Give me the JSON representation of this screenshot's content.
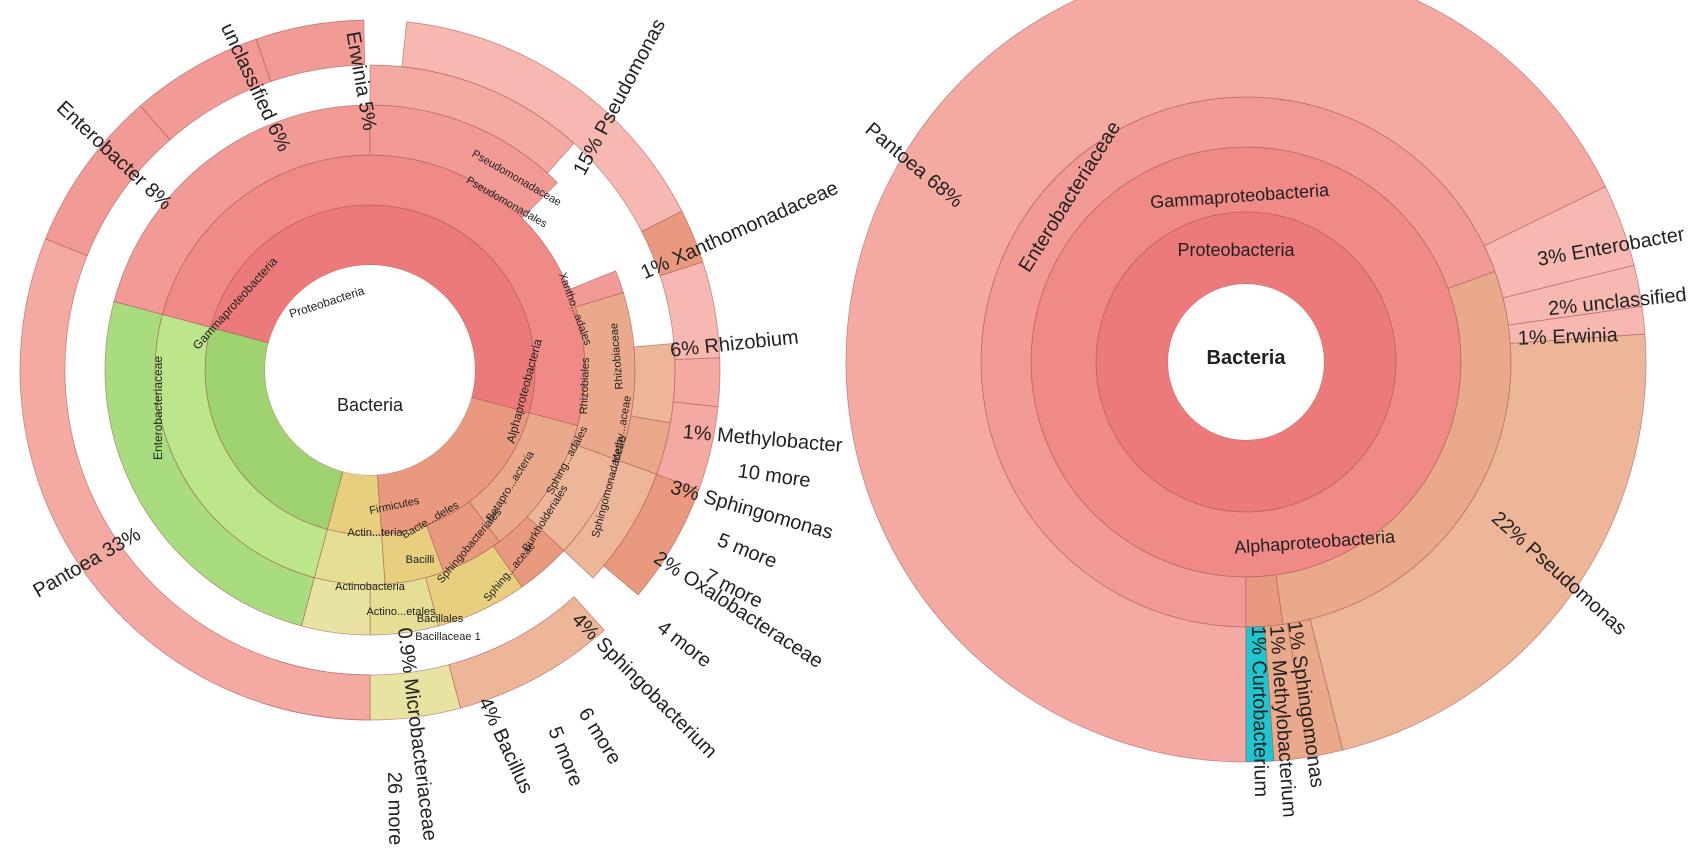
{
  "colors": {
    "p1": "#ec7a7a",
    "p2": "#f08a87",
    "p3": "#f29a96",
    "p4": "#f4a9a3",
    "p5": "#f6b8b0",
    "ao1": "#e99a7e",
    "ao2": "#eaa98a",
    "ao3": "#edb699",
    "firm1": "#e8cf80",
    "firm2": "#e5df95",
    "firm3": "#e8e3a0",
    "actin1": "#9fd36f",
    "actin2": "#bde68a",
    "actin3": "#a9dc7e",
    "cyan": "#1ec6cf",
    "stroke": "#a05555"
  },
  "chart_data": [
    {
      "type": "sunburst",
      "center_label": "Bacteria",
      "segments": [
        {
          "ring": 1,
          "start": 105,
          "end": 176,
          "label": "Alphaproteobacteria",
          "color": "ao1"
        },
        {
          "ring": 1,
          "start": 176,
          "end": 195,
          "label": "Firmicutes",
          "color": "firm1"
        },
        {
          "ring": 1,
          "start": 195,
          "end": 285,
          "label": "Actino...teria",
          "color": "actin1"
        },
        {
          "ring": 1,
          "start": 285,
          "end": 465,
          "label": "Proteobacteria",
          "color": "p1"
        },
        {
          "ring": 2,
          "start": 105,
          "end": 143,
          "label": "Alphaproteobacteria",
          "color": "ao2"
        },
        {
          "ring": 2,
          "start": 143,
          "end": 160,
          "label": "Betapro...acteria",
          "color": "ao1"
        },
        {
          "ring": 2,
          "start": 160,
          "end": 176,
          "label": "Sphingobacteriales",
          "color": "firm1"
        },
        {
          "ring": 2,
          "start": 176,
          "end": 195,
          "label": "Bacilli",
          "color": "firm2"
        },
        {
          "ring": 2,
          "start": 195,
          "end": 285,
          "label": "Actinobacteria",
          "color": "actin2"
        },
        {
          "ring": 2,
          "start": 285,
          "end": 465,
          "label": "Gammaproteobacteria",
          "color": "p2"
        },
        {
          "ring": 3,
          "start": 68,
          "end": 73,
          "label": "Xantho...adales",
          "color": "p3"
        },
        {
          "ring": 3,
          "start": 73,
          "end": 110,
          "label": "Rhizobiales",
          "color": "ao2"
        },
        {
          "ring": 3,
          "start": 110,
          "end": 133,
          "label": "Sphing...adales",
          "color": "ao3"
        },
        {
          "ring": 3,
          "start": 133,
          "end": 145,
          "label": "Burkholderiales",
          "color": "ao1"
        },
        {
          "ring": 3,
          "start": 145,
          "end": 165,
          "label": "Sphing...aceae",
          "color": "firm1"
        },
        {
          "ring": 3,
          "start": 165,
          "end": 180,
          "label": "Bacillales",
          "color": "firm2"
        },
        {
          "ring": 3,
          "start": 180,
          "end": 195,
          "label": "Bacillaceae 1",
          "color": "firm3"
        },
        {
          "ring": 3,
          "start": 195,
          "end": 285,
          "label": "Actino...etales",
          "color": "actin3"
        },
        {
          "ring": 3,
          "start": 285,
          "end": 360,
          "label": "Enterobacteriaceae",
          "color": "p3"
        },
        {
          "ring": 3,
          "start": 360,
          "end": 405,
          "label": "Pseudomonadales",
          "color": "p3"
        },
        {
          "ring": 4,
          "start": 360,
          "end": 402,
          "label": "Pseudomonadaceae",
          "color": "p4"
        },
        {
          "ring": 4,
          "start": 85,
          "end": 100,
          "label": "Methy...aceae",
          "color": "ao3"
        },
        {
          "ring": 4,
          "start": 100,
          "end": 110,
          "label": "Rhizobiaceae",
          "color": "ao2"
        },
        {
          "ring": 4,
          "start": 110,
          "end": 133,
          "label": "Sphingomonadaceae",
          "color": "ao3"
        },
        {
          "ring": 5,
          "start": 180,
          "end": 198,
          "label": "0.9% Microbacteriaceae",
          "color": "actin1"
        },
        {
          "ring": 5,
          "start": 165,
          "end": 180,
          "label": "4% Bacillus",
          "color": "firm3"
        },
        {
          "ring": 5,
          "start": 138,
          "end": 165,
          "label": "4% Sphingobacterium",
          "color": "ao3"
        },
        {
          "ring": 5,
          "start": 110,
          "end": 130,
          "label": "2% Oxalobacteraceae",
          "color": "ao1"
        },
        {
          "ring": 5,
          "start": 96,
          "end": 110,
          "label": "3% Sphingomonas",
          "color": "p4"
        },
        {
          "ring": 5,
          "start": 88,
          "end": 96,
          "label": "1% Methylobacter",
          "color": "p4"
        },
        {
          "ring": 5,
          "start": 72,
          "end": 88,
          "label": "6% Rhizobium",
          "color": "p5"
        },
        {
          "ring": 5,
          "start": 63,
          "end": 72,
          "label": "1% Xanthomonadaceae",
          "color": "ao1"
        },
        {
          "ring": 5,
          "start": 6,
          "end": 63,
          "label": "15% Pseudomonas",
          "color": "p5"
        },
        {
          "ring": 5,
          "start": -19,
          "end": -1,
          "label": "Erwinia 5%",
          "color": "p3"
        },
        {
          "ring": 5,
          "start": -41,
          "end": -19,
          "label": "unclassified 6%",
          "color": "p3"
        },
        {
          "ring": 5,
          "start": -68,
          "end": -41,
          "label": "Enterobacter 8%",
          "color": "p3"
        },
        {
          "ring": 5,
          "start": -180,
          "end": -68,
          "label": "Pantoea 33%",
          "color": "p4"
        }
      ],
      "extra_labels": [
        "10 more",
        "5 more",
        "7 more",
        "4 more",
        "6 more",
        "5 more",
        "26 more"
      ]
    },
    {
      "type": "sunburst",
      "center_label": "Bacteria",
      "segments": [
        {
          "ring": 1,
          "start": 0,
          "end": 360,
          "label": "Proteobacteria",
          "color": "p1"
        },
        {
          "ring": 2,
          "start": 0,
          "end": 360,
          "label": "Gammaproteobacteria",
          "color": "p2"
        },
        {
          "ring": 3,
          "start": -180,
          "end": 70,
          "label": "Enterobacteriaceae",
          "color": "p3"
        },
        {
          "ring": 3,
          "start": 70,
          "end": 172,
          "label": "",
          "color": "ao2"
        },
        {
          "ring": 3,
          "start": 172,
          "end": 180,
          "label": "Alphaproteobacteria",
          "color": "ao1"
        },
        {
          "ring": 5,
          "start": -180,
          "end": 64,
          "label": "Pantoea 68%",
          "color": "p4"
        },
        {
          "ring": 5,
          "start": 64,
          "end": 76,
          "label": "3% Enterobacter",
          "color": "p5"
        },
        {
          "ring": 5,
          "start": 76,
          "end": 82,
          "label": "2% unclassified",
          "color": "p5"
        },
        {
          "ring": 5,
          "start": 82,
          "end": 86,
          "label": "1% Erwinia",
          "color": "p5"
        },
        {
          "ring": 5,
          "start": 86,
          "end": 166,
          "label": "22% Pseudomonas",
          "color": "ao3"
        },
        {
          "ring": 5,
          "start": 166,
          "end": 171,
          "label": "1% Sphingomonas",
          "color": "ao2"
        },
        {
          "ring": 5,
          "start": 171,
          "end": 176,
          "label": "1% Methylobacterium",
          "color": "ao2"
        },
        {
          "ring": 5,
          "start": 176,
          "end": 180,
          "label": "1% Curtobacterium",
          "color": "cyan"
        }
      ]
    }
  ],
  "texts": {
    "c1_center": "Bacteria",
    "c1_proteo": "Proteobacteria",
    "c1_gamma": "Gammaproteobacteria",
    "c1_entero_fam": "Enterobacteriaceae",
    "c1_pseudo_ord": "Pseudomonadales",
    "c1_pseudo_fam": "Pseudomonadaceae",
    "c1_alpha": "Alphaproteobacteria",
    "c1_firm": "Firmicutes",
    "c1_actin1": "Actin...teria",
    "c1_actin2": "Actinobacteria",
    "c1_actin3": "Actino...etales",
    "c1_bacilli": "Bacilli",
    "c1_bacillales": "Bacillales",
    "c1_bacillaceae": "Bacillaceae 1",
    "c1_bacte": "Bacte...deles",
    "c1_sphingobact": "Sphingobacteriales",
    "c1_sphingaceae": "Sphing...aceae",
    "c1_betapro": "Betapro...acteria",
    "c1_burk": "Burkholderiales",
    "c1_sphingadales": "Sphing...adales",
    "c1_sphingomonadaceae": "Sphingomonadaceae",
    "c1_rhizobiales": "Rhizobiales",
    "c1_rhizobiaceae": "Rhizobiaceae",
    "c1_methyaceae": "Methy...aceae",
    "c1_xanthoadales": "Xantho...adales",
    "c1_pantoea": "Pantoea   33%",
    "c1_enterobacter": "Enterobacter   8%",
    "c1_unclassified": "unclassified   6%",
    "c1_erwinia": "Erwinia   5%",
    "c1_pseudomonas": "15%   Pseudomonas",
    "c1_xantho": "1%   Xanthomonadaceae",
    "c1_rhizobium": "6%   Rhizobium",
    "c1_methylobacter": "1%   Methylobacter",
    "c1_10more": "10 more",
    "c1_sphingomonas": "3%   Sphingomonas",
    "c1_5more_a": "5 more",
    "c1_oxalo": "2%   Oxalobacteraceae",
    "c1_7more": "7 more",
    "c1_4more": "4 more",
    "c1_sphingobacterium": "4%   Sphingobacterium",
    "c1_6more": "6 more",
    "c1_5more_b": "5 more",
    "c1_bacillus": "4%   Bacillus",
    "c1_microbact": "0.9%   Microbacteriaceae",
    "c1_26more": "26 more",
    "c2_center": "Bacteria",
    "c2_proteo": "Proteobacteria",
    "c2_gamma": "Gammaproteobacteria",
    "c2_entero_fam": "Enterobacteriaceae",
    "c2_alpha": "Alphaproteobacteria",
    "c2_pantoea": "Pantoea   68%",
    "c2_enterobacter": "3%   Enterobacter",
    "c2_unclassified": "2%   unclassified",
    "c2_erwinia": "1%   Erwinia",
    "c2_pseudomonas": "22%   Pseudomonas",
    "c2_sphingomonas": "1%   Sphingomonas",
    "c2_methylobact": "1%   Methylobacterium",
    "c2_curto": "1%   Curtobacterium"
  }
}
